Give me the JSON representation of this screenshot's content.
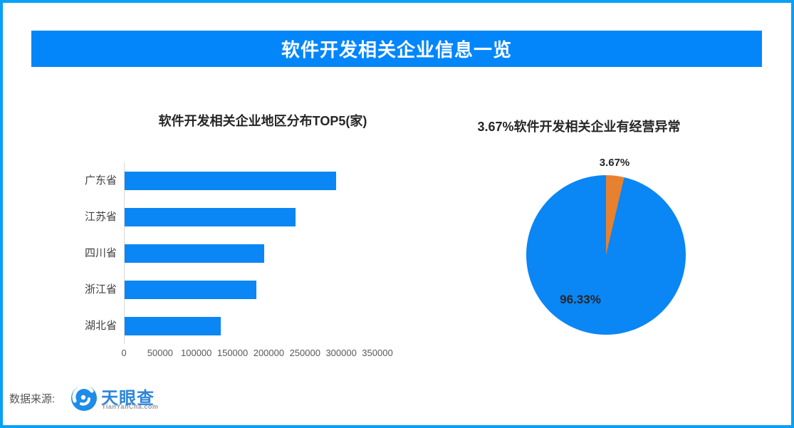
{
  "frame": {
    "border_color": "#09a0f7"
  },
  "banner": {
    "title": "软件开发相关企业信息一览",
    "bg_color": "#0486fb",
    "text_color": "#ffffff"
  },
  "chart_data": [
    {
      "type": "bar",
      "orientation": "horizontal",
      "title": "软件开发相关企业地区分布TOP5(家)",
      "categories": [
        "广东省",
        "江苏省",
        "四川省",
        "浙江省",
        "湖北省"
      ],
      "values": [
        292000,
        236000,
        193000,
        182000,
        133000
      ],
      "x_ticks": [
        0,
        50000,
        100000,
        150000,
        200000,
        250000,
        300000,
        350000
      ],
      "xlim": [
        0,
        350000
      ],
      "bar_color": "#0a86f5",
      "axis_line_color": "#d9d9d9",
      "grid": false,
      "legend": "none"
    },
    {
      "type": "pie",
      "title": "3.67%软件开发相关企业有经营异常",
      "slices": [
        {
          "label": "3.67%",
          "value": 3.67,
          "color": "#e8812f",
          "meaning": "有经营异常"
        },
        {
          "label": "96.33%",
          "value": 96.33,
          "color": "#0a86f5",
          "meaning": "无经营异常"
        }
      ],
      "start_angle_deg": 0,
      "direction": "clockwise",
      "legend": "none"
    }
  ],
  "footer": {
    "label": "数据来源:",
    "logo_name": "天眼查",
    "logo_domain": "TianYanCha.com",
    "logo_blue": "#1f8ce8"
  }
}
